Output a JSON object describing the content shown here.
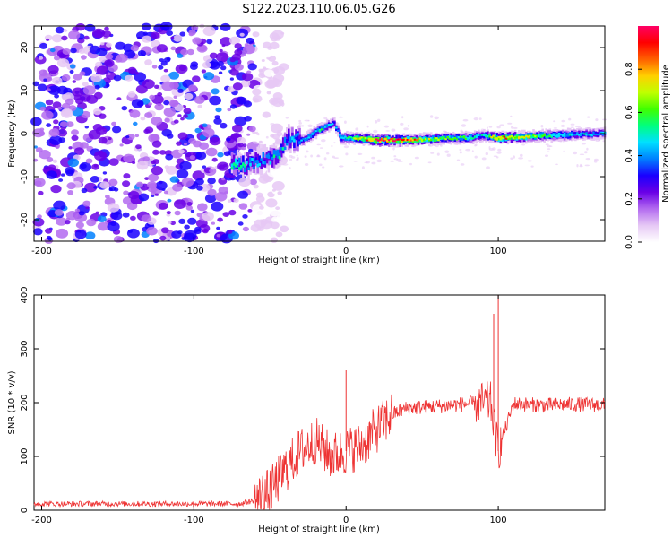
{
  "title": "S122.2023.110.06.05.G26",
  "chart_data": [
    {
      "type": "heatmap",
      "xlabel": "Height of straight line (km)",
      "ylabel": "Frequency (Hz)",
      "xlim": [
        -205,
        170
      ],
      "ylim": [
        -25,
        25
      ],
      "xticks": [
        "-200",
        "-100",
        "0",
        "100"
      ],
      "yticks": [
        "20",
        "10",
        "0",
        "-10",
        "-20"
      ],
      "colorbar": {
        "label": "Normalized spectral amplitude",
        "range": [
          0,
          1
        ],
        "ticks": [
          "0.0",
          "0.2",
          "0.4",
          "0.6",
          "0.8"
        ],
        "colors": [
          "#ffffff",
          "#e6c8f5",
          "#b36bf0",
          "#6a00e6",
          "#1a00ff",
          "#0080ff",
          "#00e0ff",
          "#00ff80",
          "#40ff00",
          "#c0ff00",
          "#ffd000",
          "#ff6000",
          "#ff0000",
          "#ff0066"
        ]
      },
      "features": {
        "noise_region_x": [
          -205,
          -60
        ],
        "ridge": [
          {
            "x": -75,
            "freq": -7.0,
            "amp": 0.5
          },
          {
            "x": -65,
            "freq": -7.5,
            "amp": 0.45
          },
          {
            "x": -55,
            "freq": -6.0,
            "amp": 0.4
          },
          {
            "x": -45,
            "freq": -5.5,
            "amp": 0.45
          },
          {
            "x": -38,
            "freq": -1.0,
            "amp": 0.4
          },
          {
            "x": -28,
            "freq": -1.5,
            "amp": 0.45
          },
          {
            "x": -17,
            "freq": 1.0,
            "amp": 0.5
          },
          {
            "x": -8,
            "freq": 2.5,
            "amp": 0.4
          },
          {
            "x": -3,
            "freq": -1.0,
            "amp": 0.45
          },
          {
            "x": 5,
            "freq": -1.0,
            "amp": 0.6
          },
          {
            "x": 20,
            "freq": -1.5,
            "amp": 0.9
          },
          {
            "x": 40,
            "freq": -1.5,
            "amp": 0.85
          },
          {
            "x": 60,
            "freq": -1.2,
            "amp": 0.6
          },
          {
            "x": 80,
            "freq": -1.0,
            "amp": 0.55
          },
          {
            "x": 90,
            "freq": -0.5,
            "amp": 0.45
          },
          {
            "x": 100,
            "freq": -1.0,
            "amp": 0.85
          },
          {
            "x": 130,
            "freq": -0.5,
            "amp": 0.55
          },
          {
            "x": 170,
            "freq": 0.0,
            "amp": 0.4
          }
        ]
      }
    },
    {
      "type": "line",
      "xlabel": "Height of straight line (km)",
      "ylabel": "SNR (10 * v/v)",
      "xlim": [
        -205,
        170
      ],
      "ylim": [
        0,
        400
      ],
      "xticks": [
        "-200",
        "-100",
        "0",
        "100"
      ],
      "yticks": [
        "0",
        "100",
        "200",
        "300",
        "400"
      ],
      "color": "#ee3333",
      "series": [
        {
          "x": [
            -205,
            -150,
            -100,
            -70,
            -60,
            -50,
            -40,
            -30,
            -20,
            -10,
            0,
            10,
            20,
            30,
            40,
            60,
            80,
            95,
            100,
            110,
            130,
            150,
            170
          ],
          "y": [
            12,
            12,
            12,
            12,
            18,
            35,
            75,
            110,
            130,
            100,
            110,
            120,
            150,
            178,
            190,
            193,
            198,
            200,
            110,
            198,
            195,
            197,
            195
          ]
        }
      ],
      "spikes": [
        {
          "x": 0,
          "y": 260
        },
        {
          "x": 97,
          "y": 365
        },
        {
          "x": 100,
          "y": 400
        }
      ]
    }
  ]
}
